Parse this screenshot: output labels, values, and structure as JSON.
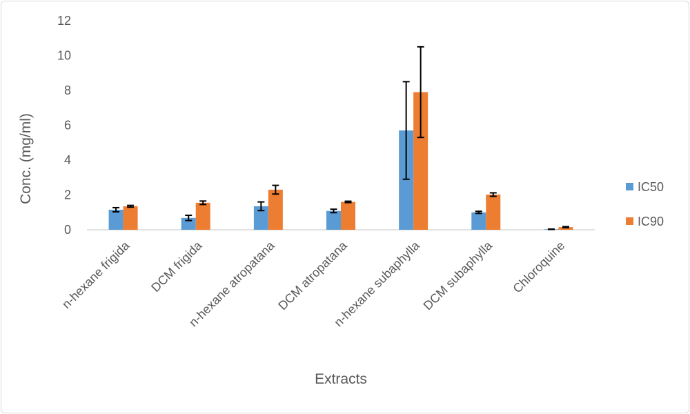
{
  "chart_data": {
    "type": "bar",
    "title": "",
    "xlabel": "Extracts",
    "ylabel": "Conc. (mg/ml)",
    "ylim": [
      0,
      12
    ],
    "yticks": [
      0,
      2,
      4,
      6,
      8,
      10,
      12
    ],
    "grid": false,
    "legend_position": "right",
    "categories": [
      "n-hexane  frigida",
      "DCM frigida",
      "n-hexane atropatana",
      "DCM atropatana",
      "n-hexane subaphylla",
      "DCM subaphylla",
      "Chloroquine"
    ],
    "series": [
      {
        "name": "IC50",
        "color": "#5b9bd5",
        "values": [
          1.15,
          0.68,
          1.35,
          1.08,
          5.7,
          1.0,
          0.03
        ],
        "errors": [
          0.12,
          0.15,
          0.25,
          0.1,
          2.8,
          0.06,
          0.01
        ]
      },
      {
        "name": "IC90",
        "color": "#ed7d31",
        "values": [
          1.35,
          1.55,
          2.3,
          1.6,
          7.9,
          2.02,
          0.15
        ],
        "errors": [
          0.05,
          0.1,
          0.25,
          0.04,
          2.6,
          0.1,
          0.03
        ]
      }
    ],
    "colors": {
      "axis": "#d9d9d9",
      "text": "#595959",
      "error_bar": "#000000"
    }
  }
}
